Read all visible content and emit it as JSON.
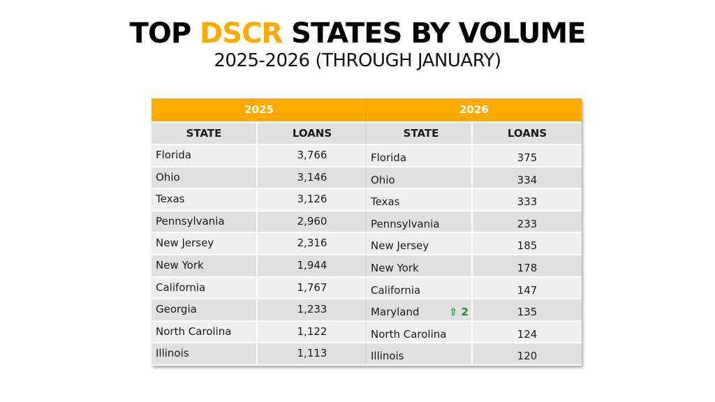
{
  "title": {
    "prefix": "TOP ",
    "accent": "DSCR",
    "suffix": " STATES BY VOLUME",
    "accent_color": "#FFAA00"
  },
  "subtitle": "2025-2026 (THROUGH JANUARY)",
  "tables": [
    {
      "year": "2025",
      "headers": {
        "state": "STATE",
        "loans": "LOANS"
      },
      "rows": [
        {
          "state": "Florida",
          "loans": "3,766"
        },
        {
          "state": "Ohio",
          "loans": "3,146"
        },
        {
          "state": "Texas",
          "loans": "3,126"
        },
        {
          "state": "Pennsylvania",
          "loans": "2,960"
        },
        {
          "state": "New Jersey",
          "loans": "2,316"
        },
        {
          "state": "New York",
          "loans": "1,944"
        },
        {
          "state": "California",
          "loans": "1,767"
        },
        {
          "state": "Georgia",
          "loans": "1,233"
        },
        {
          "state": "North Carolina",
          "loans": "1,122"
        },
        {
          "state": "Illinois",
          "loans": "1,113"
        }
      ]
    },
    {
      "year": "2026",
      "headers": {
        "state": "STATE",
        "loans": "LOANS"
      },
      "rows": [
        {
          "state": "Florida",
          "loans": "375"
        },
        {
          "state": "Ohio",
          "loans": "334"
        },
        {
          "state": "Texas",
          "loans": "333"
        },
        {
          "state": "Pennsylvania",
          "loans": "233"
        },
        {
          "state": "New Jersey",
          "loans": "185"
        },
        {
          "state": "New York",
          "loans": "178"
        },
        {
          "state": "California",
          "loans": "147"
        },
        {
          "state": "Maryland",
          "loans": "135",
          "badge": "⇧ 2",
          "badge_color": "#1a8a3a"
        },
        {
          "state": "North Carolina",
          "loans": "124"
        },
        {
          "state": "Illinois",
          "loans": "120"
        }
      ]
    }
  ],
  "colors": {
    "header_orange": "#FFAA00",
    "column_header_gray": "#e0e0e0",
    "row_light": "#efefef",
    "row_dark": "#e0e0e0",
    "up_green": "#1a8a3a"
  }
}
